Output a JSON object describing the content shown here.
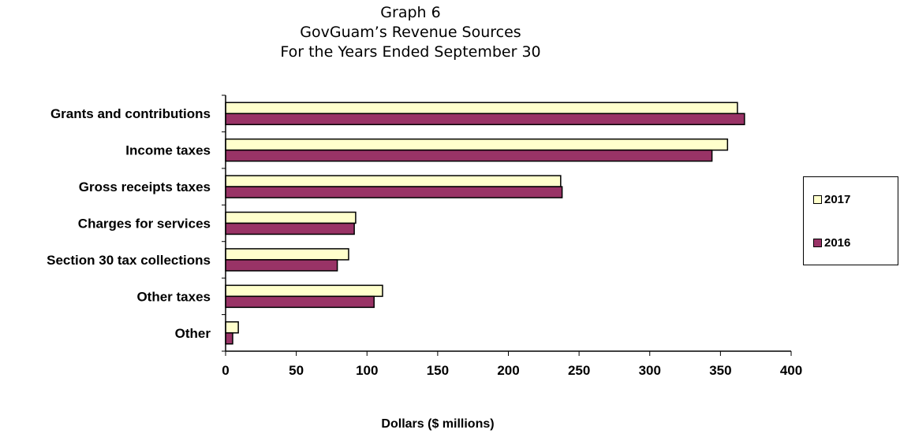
{
  "title_lines": [
    "Graph 6",
    "GovGuam’s Revenue Sources",
    "For the Years Ended September 30"
  ],
  "chart_data": {
    "type": "bar",
    "orientation": "horizontal",
    "categories": [
      "Grants and contributions",
      "Income taxes",
      "Gross receipts taxes",
      "Charges for services",
      "Section 30 tax collections",
      "Other taxes",
      "Other"
    ],
    "series": [
      {
        "name": "2017",
        "color": "#ffffcc",
        "values": [
          362,
          355,
          237,
          92,
          87,
          111,
          9
        ]
      },
      {
        "name": "2016",
        "color": "#993366",
        "values": [
          367,
          344,
          238,
          91,
          79,
          105,
          5
        ]
      }
    ],
    "xlabel": "Dollars ($ millions)",
    "xlim": [
      0,
      400
    ],
    "xticks": [
      0,
      50,
      100,
      150,
      200,
      250,
      300,
      350,
      400
    ],
    "grid": false,
    "legend_position": "right"
  }
}
